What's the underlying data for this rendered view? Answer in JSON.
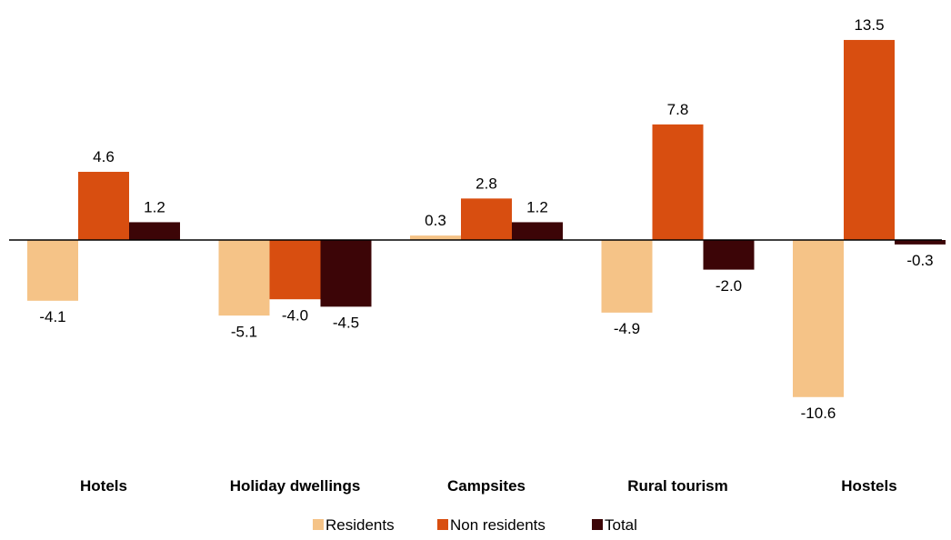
{
  "chart_data": {
    "type": "bar",
    "categories": [
      "Hotels",
      "Holiday dwellings",
      "Campsites",
      "Rural tourism",
      "Hostels"
    ],
    "series": [
      {
        "name": "Residents",
        "values": [
          -4.1,
          -5.1,
          0.3,
          -4.9,
          -10.6
        ],
        "labels": [
          "-4.1",
          "-5.1",
          "0.3",
          "-4.9",
          "-10.6"
        ],
        "color": "#F5C387"
      },
      {
        "name": "Non residents",
        "values": [
          4.6,
          -4.0,
          2.8,
          7.8,
          13.5
        ],
        "labels": [
          "4.6",
          "-4.0",
          "2.8",
          "7.8",
          "13.5"
        ],
        "color": "#D84E10"
      },
      {
        "name": "Total",
        "values": [
          1.2,
          -4.5,
          1.2,
          -2.0,
          -0.3
        ],
        "labels": [
          "1.2",
          "-4.5",
          "1.2",
          "-2.0",
          "-0.3"
        ],
        "color": "#3C0507"
      }
    ],
    "title": "",
    "xlabel": "",
    "ylabel": "",
    "grid": false,
    "legend_position": "bottom",
    "axis_line_color": "#000000"
  }
}
